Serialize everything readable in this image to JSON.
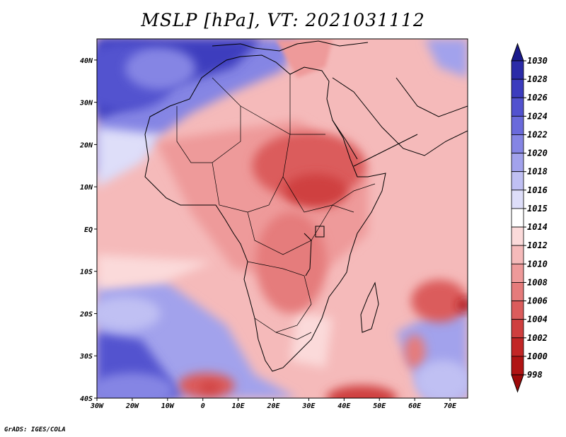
{
  "title": "MSLP [hPa], VT: 2021031112",
  "credit": "GrADS: IGES/COLA",
  "map": {
    "projection": "lat-lon",
    "lon_range": [
      -30,
      75
    ],
    "lat_range": [
      -40,
      45
    ],
    "lon_ticks": [
      {
        "value": -30,
        "label": "30W"
      },
      {
        "value": -20,
        "label": "20W"
      },
      {
        "value": -10,
        "label": "10W"
      },
      {
        "value": 0,
        "label": "0"
      },
      {
        "value": 10,
        "label": "10E"
      },
      {
        "value": 20,
        "label": "20E"
      },
      {
        "value": 30,
        "label": "30E"
      },
      {
        "value": 40,
        "label": "40E"
      },
      {
        "value": 50,
        "label": "50E"
      },
      {
        "value": 60,
        "label": "60E"
      },
      {
        "value": 70,
        "label": "70E"
      }
    ],
    "lat_ticks": [
      {
        "value": 40,
        "label": "40N"
      },
      {
        "value": 30,
        "label": "30N"
      },
      {
        "value": 20,
        "label": "20N"
      },
      {
        "value": 10,
        "label": "10N"
      },
      {
        "value": 0,
        "label": "EQ"
      },
      {
        "value": -10,
        "label": "10S"
      },
      {
        "value": -20,
        "label": "20S"
      },
      {
        "value": -30,
        "label": "30S"
      },
      {
        "value": -40,
        "label": "40S"
      }
    ],
    "field_blobs": [
      {
        "lon": -22,
        "lat": 36,
        "rx": 14,
        "ry": 8,
        "level": 1026
      },
      {
        "lon": -12,
        "lat": 38,
        "rx": 10,
        "ry": 5,
        "level": 1022
      },
      {
        "lon": 30,
        "lat": 15,
        "rx": 16,
        "ry": 8,
        "level": 1006
      },
      {
        "lon": 32,
        "lat": 9,
        "rx": 9,
        "ry": 4,
        "level": 1004
      },
      {
        "lon": 25,
        "lat": -8,
        "rx": 10,
        "ry": 12,
        "level": 1008
      },
      {
        "lon": 67,
        "lat": -17,
        "rx": 8,
        "ry": 5,
        "level": 1006
      },
      {
        "lon": 74,
        "lat": -18,
        "rx": 2,
        "ry": 1.5,
        "level": 1000
      },
      {
        "lon": 1,
        "lat": -37,
        "rx": 8,
        "ry": 3,
        "level": 1006
      },
      {
        "lon": 2,
        "lat": -37.5,
        "rx": 3,
        "ry": 1.2,
        "level": 1004
      },
      {
        "lon": 45,
        "lat": -40,
        "rx": 10,
        "ry": 3,
        "level": 1004
      },
      {
        "lon": 60,
        "lat": -29,
        "rx": 3,
        "ry": 4,
        "level": 1008
      },
      {
        "lon": -20,
        "lat": -38,
        "rx": 12,
        "ry": 4,
        "level": 1022
      },
      {
        "lon": -22,
        "lat": -20,
        "rx": 10,
        "ry": 4,
        "level": 1018
      },
      {
        "lon": 68,
        "lat": -36,
        "rx": 8,
        "ry": 5,
        "level": 1018
      }
    ]
  },
  "colorbar": {
    "levels": [
      1030,
      1028,
      1026,
      1024,
      1022,
      1020,
      1018,
      1016,
      1015,
      1014,
      1012,
      1010,
      1008,
      1006,
      1004,
      1002,
      1000,
      998
    ],
    "colors": [
      "#1a1a8c",
      "#2b2ba8",
      "#3c3cbe",
      "#5252cf",
      "#6a6adb",
      "#8585e4",
      "#a2a2ec",
      "#c0c0f3",
      "#dedef9",
      "#ffffff",
      "#fbdada",
      "#f5baba",
      "#ee9a9a",
      "#e57b7b",
      "#db5c5c",
      "#cf3f3f",
      "#c22626",
      "#b01414",
      "#9e0a0a"
    ]
  }
}
